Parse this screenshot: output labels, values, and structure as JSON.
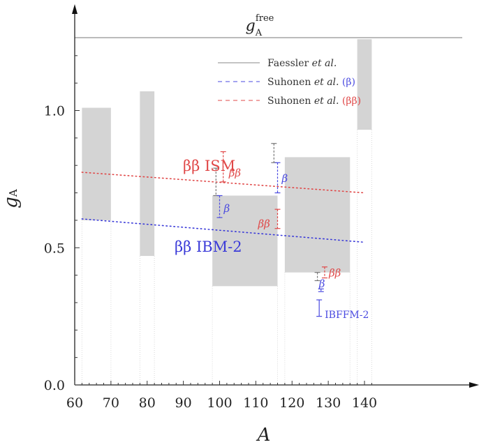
{
  "chart_data": {
    "type": "mixed",
    "xlabel": "A",
    "ylabel": "g",
    "ylabel_sub": "A",
    "xlim": [
      60,
      142
    ],
    "ylim": [
      0.0,
      1.27
    ],
    "x_ticks": [
      60,
      70,
      80,
      90,
      100,
      110,
      120,
      130,
      140
    ],
    "y_ticks": [
      0.0,
      0.5,
      1.0
    ],
    "y_tick_labels": [
      "0.0",
      "0.5",
      "1.0"
    ],
    "grid": false,
    "reference_line": {
      "y": 1.27,
      "label": "g",
      "label_sub": "A",
      "label_sup": "free"
    },
    "legend_position": "top-right",
    "legend": [
      {
        "main": "Faessler ",
        "ital": "et al.",
        "tail": "",
        "color": "#888888",
        "style": "solid"
      },
      {
        "main": "Suhonen ",
        "ital": "et al.",
        "tail": " (β)",
        "color": "#4a4ae0",
        "style": "dashed"
      },
      {
        "main": "Suhonen ",
        "ital": "et al.",
        "tail": " (ββ)",
        "color": "#e04848",
        "style": "dashed"
      }
    ],
    "shaded_ranges": [
      {
        "x": [
          62,
          70
        ],
        "y": [
          0.6,
          1.01
        ]
      },
      {
        "x": [
          78,
          82
        ],
        "y": [
          0.47,
          1.07
        ]
      },
      {
        "x": [
          98,
          116
        ],
        "y": [
          0.36,
          0.69
        ]
      },
      {
        "x": [
          118,
          136
        ],
        "y": [
          0.41,
          0.83
        ]
      },
      {
        "x": [
          138,
          142
        ],
        "y": [
          0.93,
          1.26
        ]
      }
    ],
    "series": [
      {
        "name": "ββ ISM",
        "type": "dotted-line",
        "color": "#e04848",
        "x": [
          62,
          140
        ],
        "y": [
          0.775,
          0.7
        ]
      },
      {
        "name": "ββ IBM-2",
        "type": "dotted-line",
        "color": "#3a3ad8",
        "x": [
          62,
          140
        ],
        "y": [
          0.605,
          0.52
        ]
      }
    ],
    "error_bars": [
      {
        "label": "",
        "x": 99,
        "y_low": 0.69,
        "y_high": 0.79,
        "color": "#777777"
      },
      {
        "label": "ββ",
        "x": 101,
        "y_low": 0.74,
        "y_high": 0.85,
        "color": "#e04848"
      },
      {
        "label": "β",
        "x": 100,
        "y_low": 0.61,
        "y_high": 0.69,
        "color": "#4a4ae0"
      },
      {
        "label": "",
        "x": 115,
        "y_low": 0.81,
        "y_high": 0.88,
        "color": "#777777"
      },
      {
        "label": "β",
        "x": 116,
        "y_low": 0.7,
        "y_high": 0.81,
        "color": "#4a4ae0"
      },
      {
        "label": "ββ",
        "x": 116,
        "y_low": 0.57,
        "y_high": 0.64,
        "color": "#e04848"
      },
      {
        "label": "",
        "x": 127,
        "y_low": 0.38,
        "y_high": 0.41,
        "color": "#777777"
      },
      {
        "label": "ββ",
        "x": 129,
        "y_low": 0.39,
        "y_high": 0.43,
        "color": "#e04848"
      },
      {
        "label": "β",
        "x": 128,
        "y_low": 0.34,
        "y_high": 0.35,
        "color": "#4a4ae0"
      },
      {
        "label": "IBFFM-2",
        "x": 127.5,
        "y_low": 0.25,
        "y_high": 0.31,
        "color": "#4a4ae0"
      }
    ]
  }
}
